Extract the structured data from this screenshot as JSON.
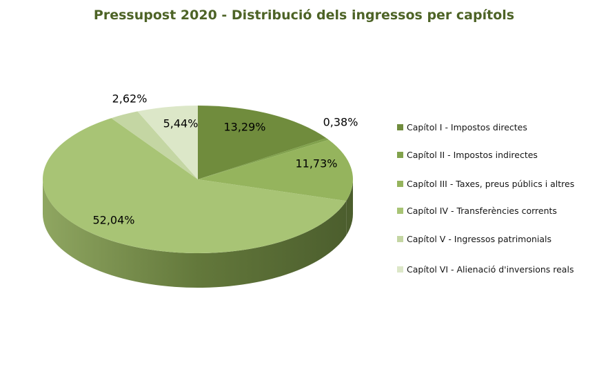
{
  "title": "Pressupost 2020 - Distribució dels ingressos per capítols",
  "chart_data": {
    "type": "pie",
    "title": "Pressupost 2020 - Distribució dels ingressos per capítols",
    "effect": "3d",
    "legend_position": "right",
    "background_color": "#ffffff",
    "title_color": "#4D6326",
    "label_color": "#000000",
    "slices": [
      {
        "label": "Capítol I - Impostos directes",
        "value": 13.29,
        "display": "13,29%",
        "color": "#708C3D"
      },
      {
        "label": "Capítol II - Impostos indirectes",
        "value": 0.38,
        "display": "0,38%",
        "color": "#81A24C"
      },
      {
        "label": "Capítol III - Taxes, preus públics i altres",
        "value": 11.73,
        "display": "11,73%",
        "color": "#95B45D"
      },
      {
        "label": "Capítol IV - Transferències corrents",
        "value": 52.04,
        "display": "52,04%",
        "color": "#A8C475"
      },
      {
        "label": "Capítol V - Ingressos patrimonials",
        "value": 2.62,
        "display": "2,62%",
        "color": "#C4D6A3"
      },
      {
        "label": "Capítol VI - Alienació d'inversions reals",
        "value": 5.44,
        "display": "5,44%",
        "color": "#DCE7C8"
      }
    ]
  }
}
